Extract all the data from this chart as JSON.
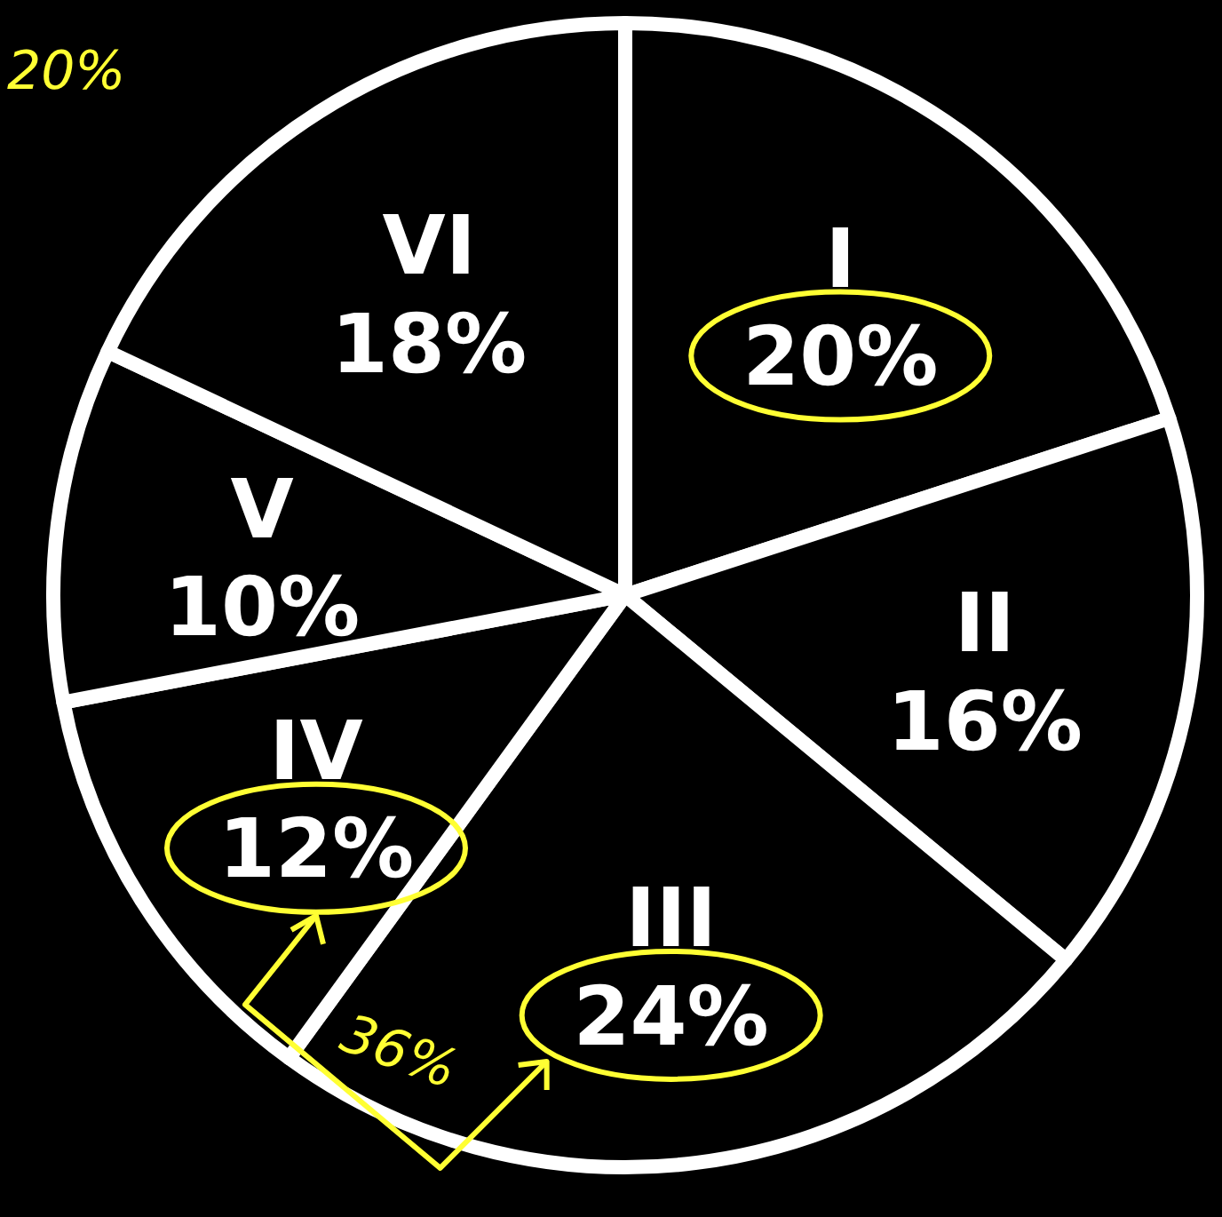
{
  "chart_data": {
    "type": "pie",
    "categories": [
      "I",
      "II",
      "III",
      "IV",
      "V",
      "VI"
    ],
    "values": [
      20,
      16,
      24,
      12,
      10,
      18
    ],
    "value_labels": [
      "20%",
      "16%",
      "24%",
      "12%",
      "10%",
      "18%"
    ],
    "colors": [
      "#000000",
      "#000000",
      "#000000",
      "#000000",
      "#000000",
      "#000000"
    ],
    "annotations": [
      "20%",
      "36%"
    ]
  }
}
